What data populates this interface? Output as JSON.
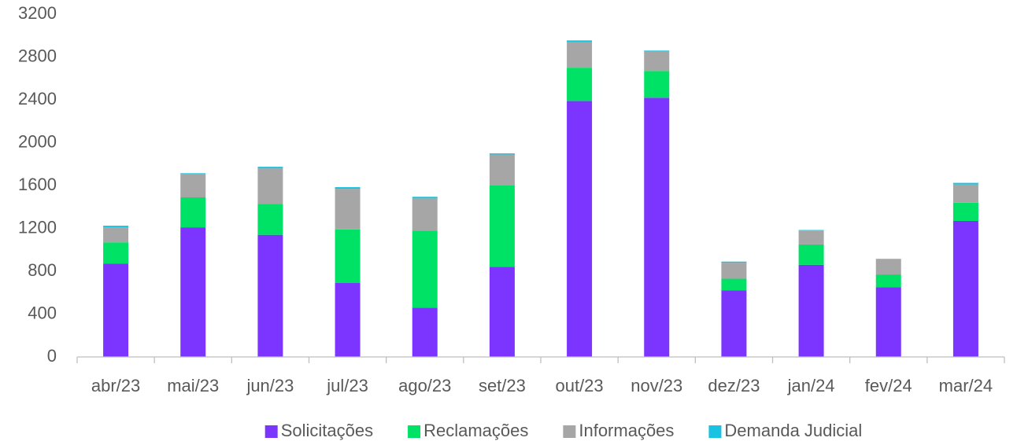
{
  "chart_data": {
    "type": "stacked_bar",
    "categories": [
      "abr/23",
      "mai/23",
      "jun/23",
      "jul/23",
      "ago/23",
      "set/23",
      "out/23",
      "nov/23",
      "dez/23",
      "jan/24",
      "fev/24",
      "mar/24"
    ],
    "series": [
      {
        "name": "Solicitações",
        "color": "#7b35ff",
        "values": [
          870,
          1210,
          1140,
          690,
          460,
          840,
          2390,
          2420,
          620,
          860,
          650,
          1270
        ]
      },
      {
        "name": "Reclamações",
        "color": "#00e266",
        "values": [
          200,
          280,
          290,
          500,
          720,
          760,
          310,
          250,
          110,
          190,
          120,
          170
        ]
      },
      {
        "name": "Informações",
        "color": "#a6a6a6",
        "values": [
          140,
          220,
          330,
          380,
          300,
          290,
          240,
          180,
          150,
          130,
          140,
          170
        ]
      },
      {
        "name": "Demanda Judicial",
        "color": "#17c3e0",
        "values": [
          15,
          5,
          15,
          15,
          15,
          10,
          15,
          10,
          10,
          5,
          5,
          15
        ]
      }
    ],
    "ylim": [
      0,
      3200
    ],
    "yticks": [
      0,
      400,
      800,
      1200,
      1600,
      2000,
      2400,
      2800,
      3200
    ],
    "grid": false,
    "legend": "bottom"
  }
}
